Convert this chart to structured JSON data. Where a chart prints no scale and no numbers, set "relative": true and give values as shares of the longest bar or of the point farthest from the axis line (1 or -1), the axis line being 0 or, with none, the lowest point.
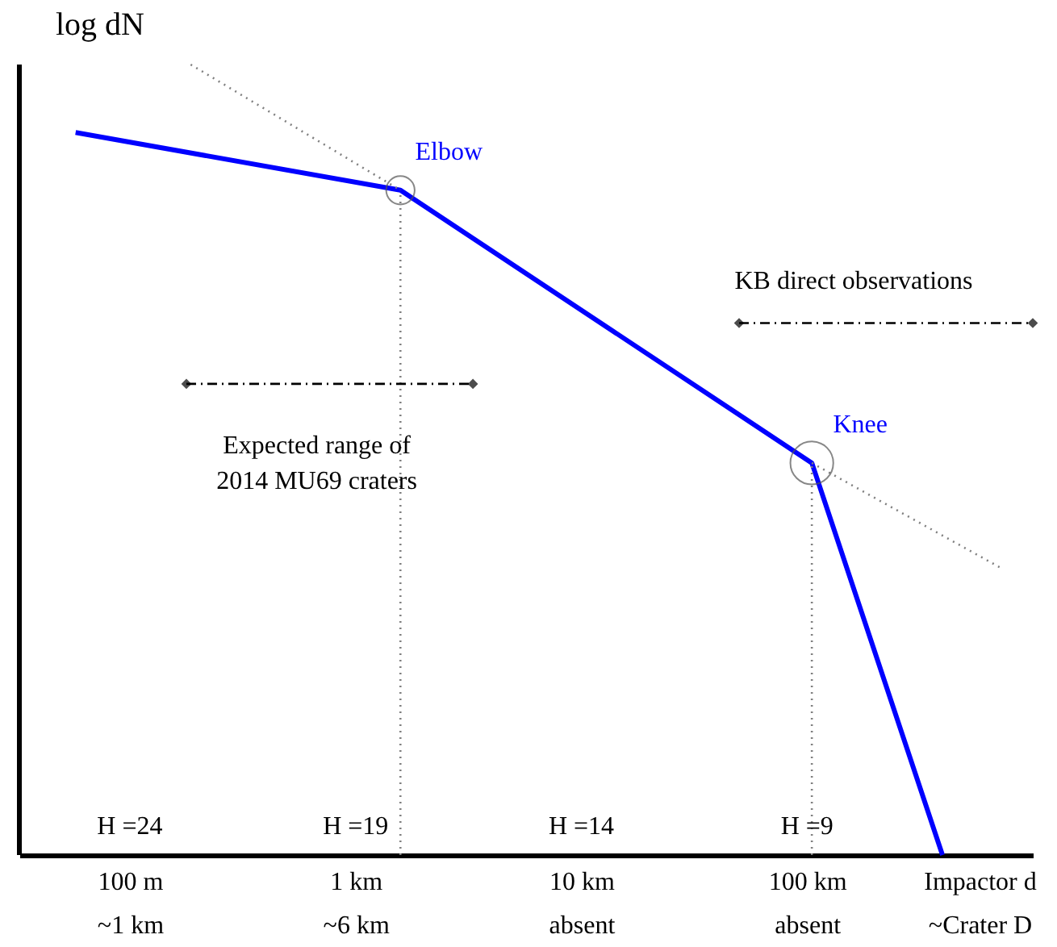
{
  "chart_data": {
    "type": "line",
    "relative": true,
    "log": "x",
    "xlabel": "Impactor d\n~Crater D",
    "ylabel": "log dN",
    "xlim": [
      0.0324,
      1000
    ],
    "xticks": [
      {
        "value": 0.1,
        "label": "100 m\n~1 km"
      },
      {
        "value": 1,
        "label": "1 km\n~6 km"
      },
      {
        "value": 10,
        "label": "10 km\nabsent"
      },
      {
        "value": 100,
        "label": "100 km\nabsent"
      }
    ],
    "grid": false,
    "legend": false,
    "series": [
      {
        "color": "#0000ff",
        "x": [
          0.0575,
          1.58,
          105,
          398
        ],
        "values": [
          0.914,
          0.841,
          0.496,
          0
        ]
      },
      {
        "color": "#808080",
        "line_style": "dotted",
        "x": [
          0.186,
          1.58
        ],
        "values": [
          1.0,
          0.841
        ]
      },
      {
        "color": "#808080",
        "line_style": "dotted",
        "x": [
          105,
          724
        ],
        "values": [
          0.496,
          0.363
        ]
      },
      {
        "color": "#808080",
        "line_style": "dotted",
        "x": [
          1.58,
          1.58
        ],
        "values": [
          0,
          0.841
        ]
      },
      {
        "color": "#808080",
        "line_style": "dotted",
        "x": [
          105,
          105
        ],
        "values": [
          0,
          0.496
        ]
      },
      {
        "type": "bubble",
        "color": "#555555",
        "x": [
          1.58,
          105
        ],
        "values": [
          0.841,
          0.496
        ],
        "sizes": [
          0.44,
          1
        ]
      },
      {
        "color": "#000000",
        "line_style": "dashed",
        "marker": "diamond",
        "x": [
          0.178,
          3.31
        ],
        "values": [
          0.596,
          0.596
        ]
      },
      {
        "color": "#000000",
        "line_style": "dashed",
        "marker": "diamond",
        "x": [
          50,
          1000
        ],
        "values": [
          0.673,
          0.673
        ]
      }
    ],
    "ref_lines": [
      {
        "axis": "x",
        "value": 0.0324,
        "color": "#000000"
      }
    ],
    "annotations": [
      "Elbow",
      "Knee",
      "KB direct observations",
      "Expected range of\n2014 MU69 craters",
      "H =24",
      "H =19",
      "H =14",
      "H =9"
    ]
  }
}
